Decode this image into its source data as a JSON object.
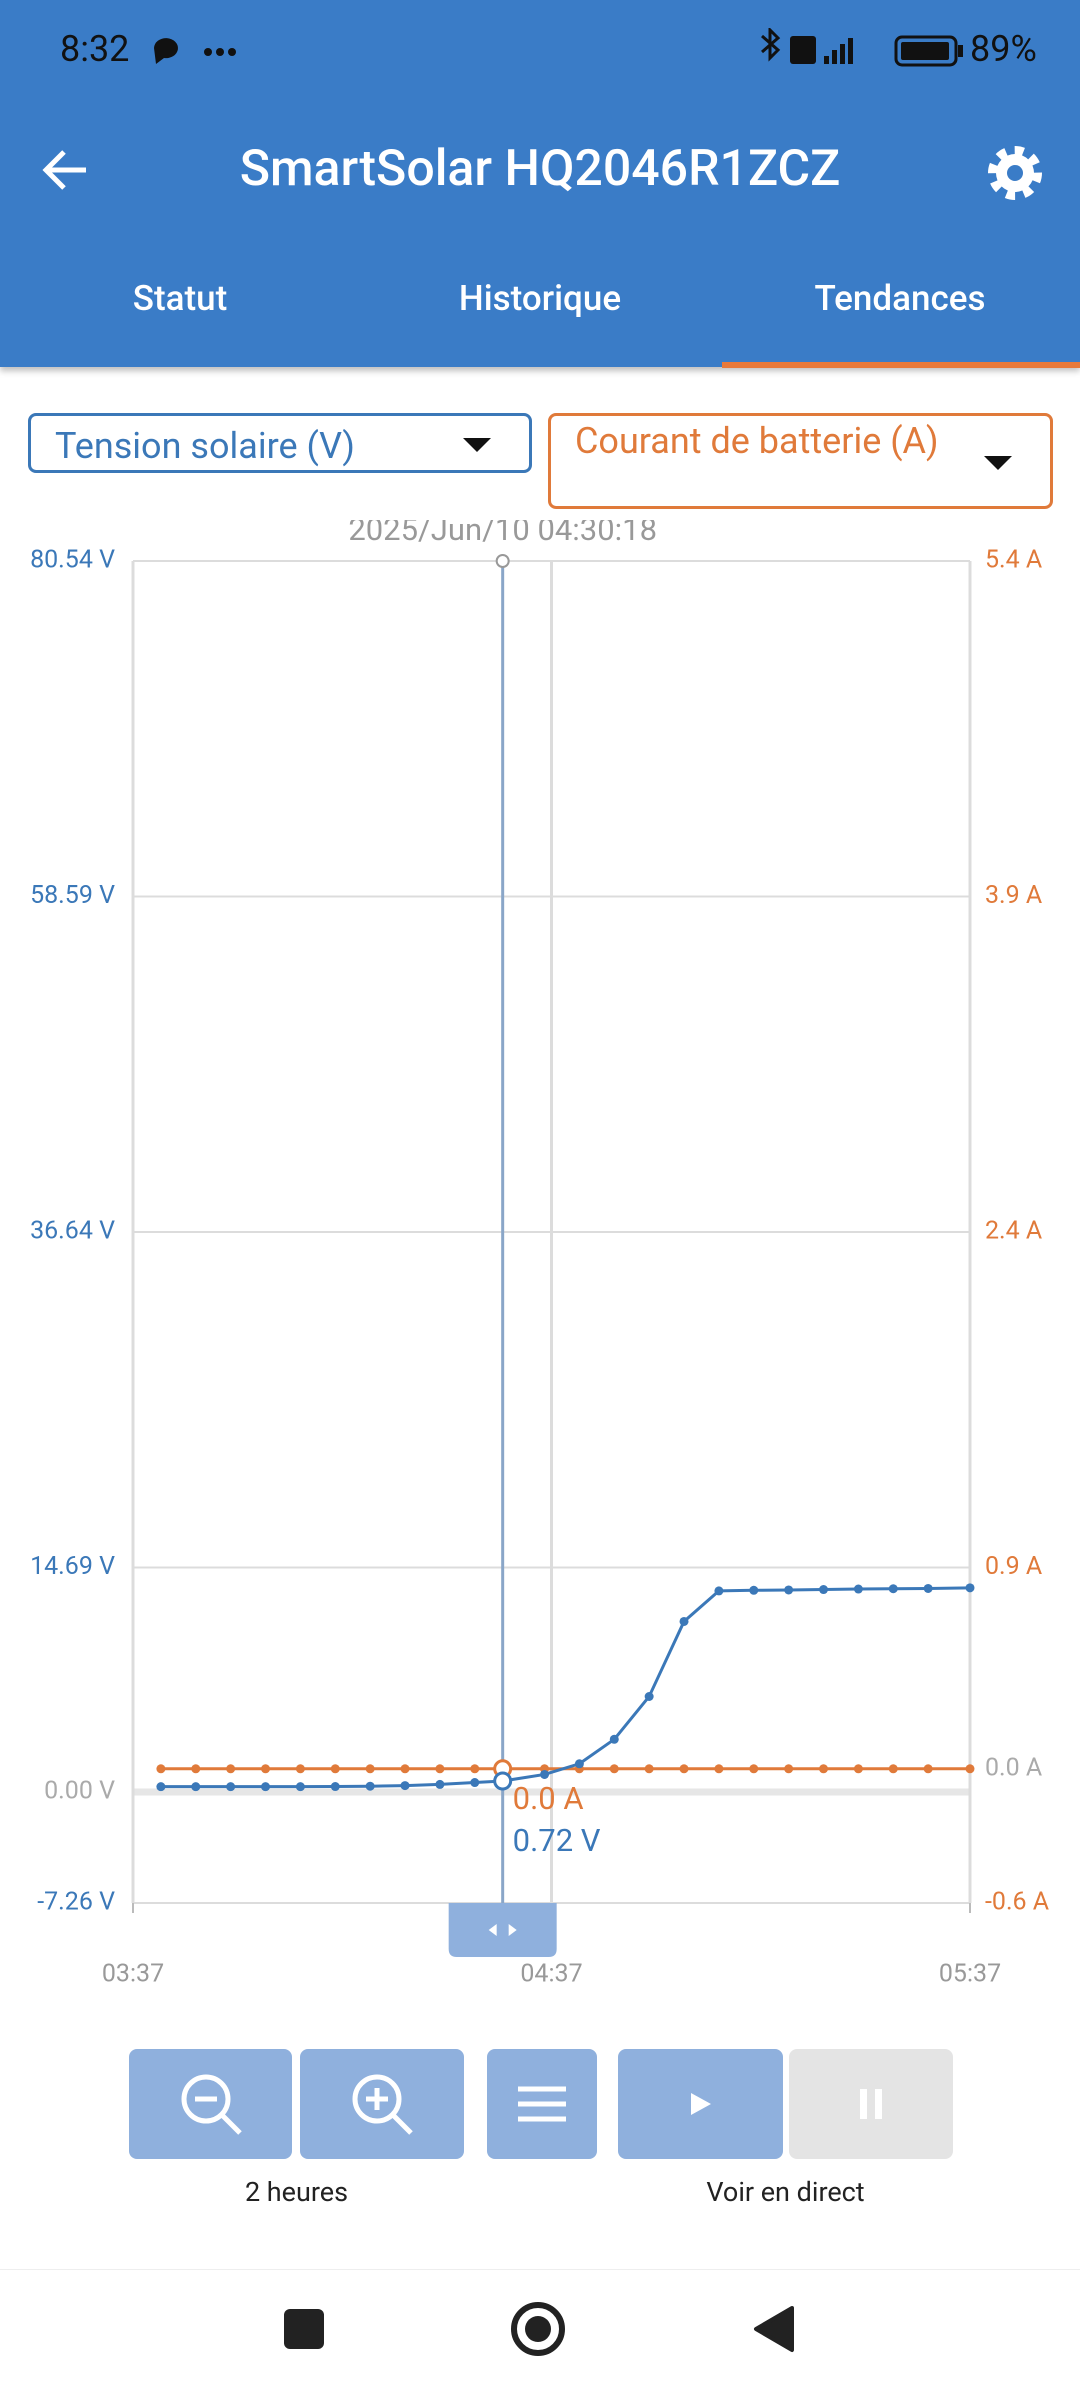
{
  "status_bar": {
    "time": "8:32",
    "battery": "89%"
  },
  "app_bar": {
    "title": "SmartSolar HQ2046R1ZCZ"
  },
  "tabs": [
    "Statut",
    "Historique",
    "Tendances"
  ],
  "chart_data": {
    "type": "line",
    "cursor_label": "2025/Jun/10 04:30:18",
    "x": [
      "03:41",
      "03:46",
      "03:51",
      "03:56",
      "04:01",
      "04:06",
      "04:11",
      "04:16",
      "04:21",
      "04:26",
      "04:30",
      "04:36",
      "04:41",
      "04:46",
      "04:51",
      "04:56",
      "05:01",
      "05:06",
      "05:11",
      "05:16",
      "05:21",
      "05:26",
      "05:31",
      "05:37"
    ],
    "xlim": [
      "03:37",
      "05:37"
    ],
    "xticks": [
      "03:37",
      "04:37",
      "05:37"
    ],
    "ylim": [
      -7.26,
      80.54
    ],
    "yticks": [
      {
        "value": 80.54,
        "label": "80.54 V"
      },
      {
        "value": 58.59,
        "label": "58.59 V"
      },
      {
        "value": 36.64,
        "label": "36.64 V"
      },
      {
        "value": 14.69,
        "label": "14.69 V"
      },
      {
        "value": 0,
        "label": "0.00 V"
      },
      {
        "value": -7.26,
        "label": "-7.26 V"
      }
    ],
    "y2lim": [
      -0.6,
      5.4
    ],
    "y2ticks": [
      {
        "value": 5.4,
        "label": "5.4 A"
      },
      {
        "value": 3.9,
        "label": "3.9 A"
      },
      {
        "value": 2.4,
        "label": "2.4 A"
      },
      {
        "value": 0.9,
        "label": "0.9 A"
      },
      {
        "value": 0,
        "label": "0.0 A"
      },
      {
        "value": -0.6,
        "label": "-0.6 A"
      }
    ],
    "grid": true,
    "series": [
      {
        "name": "Tension solaire (V)",
        "color": "#3b78b8",
        "values": [
          0.35,
          0.35,
          0.35,
          0.35,
          0.35,
          0.36,
          0.38,
          0.42,
          0.5,
          0.62,
          0.72,
          1.15,
          1.85,
          3.45,
          6.25,
          11.16,
          13.16,
          13.2,
          13.22,
          13.25,
          13.28,
          13.3,
          13.32,
          13.36
        ],
        "value_labels": [
          null,
          null,
          null,
          null,
          null,
          null,
          null,
          null,
          null,
          null,
          "0.72 V",
          null,
          null,
          null,
          null,
          null,
          null,
          null,
          null,
          null,
          null,
          null,
          null,
          null
        ]
      },
      {
        "name": "Courant de batterie (A)",
        "color": "#e07a3a",
        "axis": "y2",
        "values": [
          0,
          0,
          0,
          0,
          0,
          0,
          0,
          0,
          0,
          0,
          0,
          0,
          0,
          0,
          0,
          0,
          0,
          0,
          0,
          0,
          0,
          0,
          0,
          0
        ],
        "value_labels": [
          null,
          null,
          null,
          null,
          null,
          null,
          null,
          null,
          null,
          null,
          "0.0 A",
          null,
          null,
          null,
          null,
          null,
          null,
          null,
          null,
          null,
          null,
          null,
          null,
          null
        ]
      }
    ]
  },
  "controls": {
    "zoom_label": "2 heures",
    "live_label": "Voir en direct"
  }
}
